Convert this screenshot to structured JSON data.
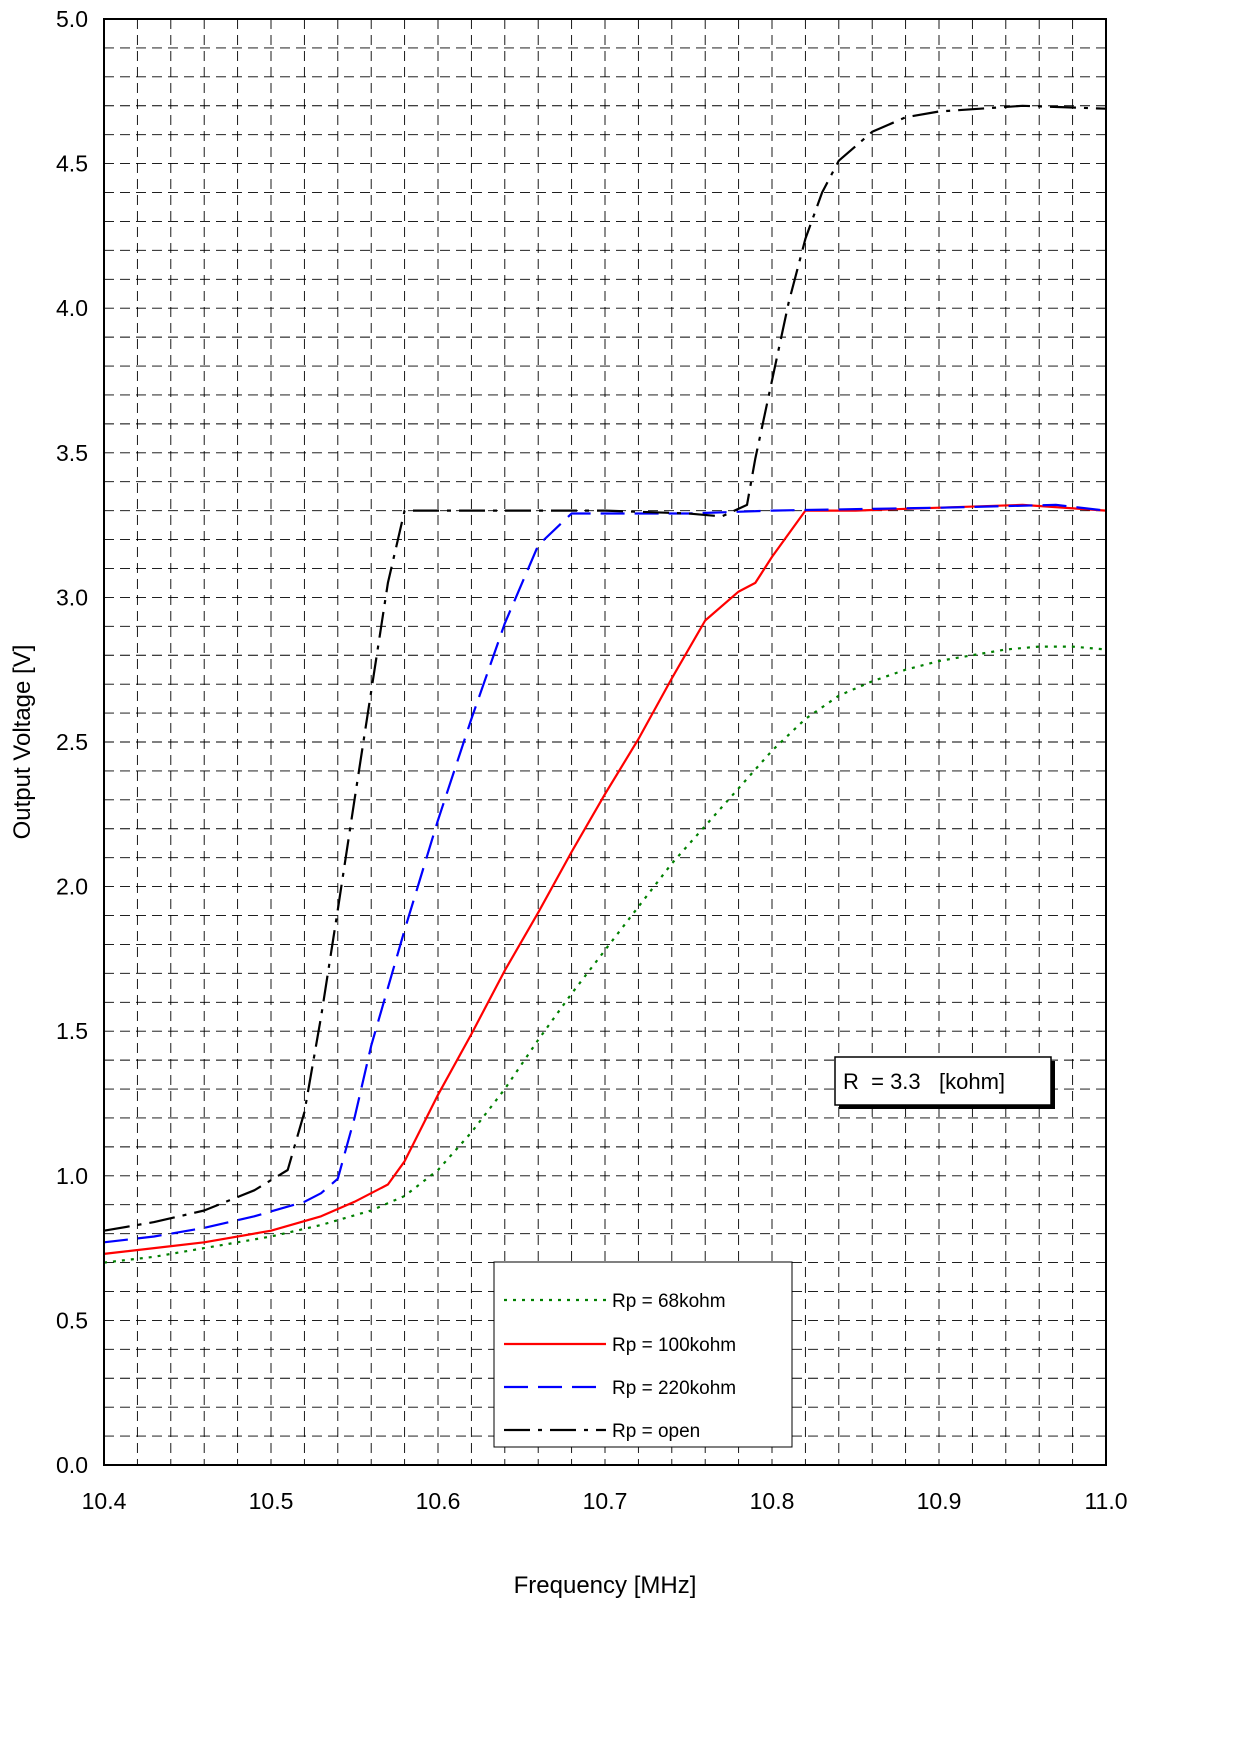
{
  "chart_data": {
    "type": "line",
    "title": "",
    "xlabel": "Frequency [MHz]",
    "ylabel": "Output Voltage [V]",
    "xlim": [
      10.4,
      11.0
    ],
    "ylim": [
      0.0,
      5.0
    ],
    "x_ticks": [
      "10.4",
      "10.5",
      "10.6",
      "10.7",
      "10.8",
      "10.9",
      "11.0"
    ],
    "y_ticks": [
      "0.0",
      "0.5",
      "1.0",
      "1.5",
      "2.0",
      "2.5",
      "3.0",
      "3.5",
      "4.0",
      "4.5",
      "5.0"
    ],
    "grid": true,
    "legend_position": "bottom-center",
    "annotation": "R  = 3.3   [kohm]",
    "series": [
      {
        "name": "Rp = 68kohm",
        "color": "#008000",
        "dash": "dotted",
        "x": [
          10.4,
          10.43,
          10.46,
          10.5,
          10.53,
          10.56,
          10.58,
          10.6,
          10.62,
          10.64,
          10.66,
          10.68,
          10.7,
          10.72,
          10.74,
          10.76,
          10.78,
          10.8,
          10.82,
          10.84,
          10.86,
          10.88,
          10.9,
          10.92,
          10.94,
          10.96,
          10.98,
          11.0
        ],
        "values": [
          0.7,
          0.72,
          0.75,
          0.79,
          0.83,
          0.88,
          0.93,
          1.02,
          1.15,
          1.3,
          1.47,
          1.63,
          1.78,
          1.93,
          2.08,
          2.21,
          2.34,
          2.47,
          2.58,
          2.66,
          2.71,
          2.75,
          2.78,
          2.8,
          2.82,
          2.83,
          2.83,
          2.82
        ]
      },
      {
        "name": "Rp = 100kohm",
        "color": "#ff0000",
        "dash": "solid",
        "x": [
          10.4,
          10.43,
          10.46,
          10.5,
          10.53,
          10.55,
          10.57,
          10.58,
          10.6,
          10.62,
          10.64,
          10.66,
          10.68,
          10.7,
          10.72,
          10.74,
          10.76,
          10.78,
          10.79,
          10.8,
          10.82,
          10.85,
          10.9,
          10.95,
          11.0
        ],
        "values": [
          0.73,
          0.75,
          0.77,
          0.81,
          0.86,
          0.91,
          0.97,
          1.05,
          1.28,
          1.49,
          1.71,
          1.91,
          2.12,
          2.32,
          2.51,
          2.72,
          2.92,
          3.02,
          3.05,
          3.14,
          3.3,
          3.3,
          3.31,
          3.32,
          3.3
        ]
      },
      {
        "name": "Rp = 220kohm",
        "color": "#0000ff",
        "dash": "dashed",
        "x": [
          10.4,
          10.43,
          10.46,
          10.49,
          10.52,
          10.53,
          10.54,
          10.55,
          10.56,
          10.58,
          10.6,
          10.62,
          10.64,
          10.66,
          10.68,
          10.7,
          10.75,
          10.8,
          10.9,
          10.97,
          11.0
        ],
        "values": [
          0.77,
          0.79,
          0.82,
          0.86,
          0.91,
          0.94,
          0.99,
          1.2,
          1.45,
          1.85,
          2.23,
          2.58,
          2.91,
          3.18,
          3.29,
          3.29,
          3.29,
          3.3,
          3.31,
          3.32,
          3.3
        ]
      },
      {
        "name": "Rp = open",
        "color": "#000000",
        "dash": "dashdot",
        "x": [
          10.4,
          10.43,
          10.46,
          10.49,
          10.51,
          10.52,
          10.53,
          10.54,
          10.55,
          10.57,
          10.58,
          10.6,
          10.65,
          10.7,
          10.75,
          10.77,
          10.785,
          10.79,
          10.8,
          10.81,
          10.82,
          10.83,
          10.84,
          10.86,
          10.88,
          10.9,
          10.95,
          11.0
        ],
        "values": [
          0.81,
          0.84,
          0.88,
          0.95,
          1.02,
          1.22,
          1.55,
          1.92,
          2.3,
          3.05,
          3.3,
          3.3,
          3.3,
          3.3,
          3.29,
          3.28,
          3.32,
          3.48,
          3.75,
          4.02,
          4.24,
          4.4,
          4.51,
          4.61,
          4.66,
          4.68,
          4.7,
          4.69
        ]
      }
    ]
  }
}
